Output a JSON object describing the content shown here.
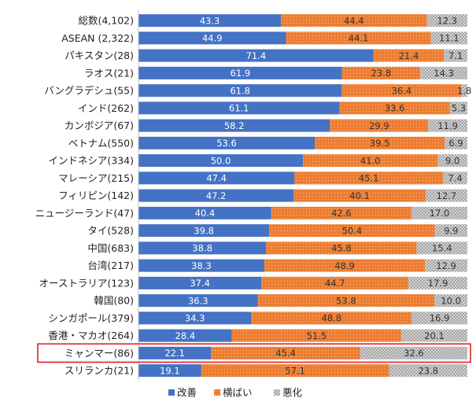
{
  "chart_data": {
    "type": "bar",
    "orientation": "horizontal",
    "stacked": "percent",
    "title": "",
    "xlabel": "",
    "ylabel": "",
    "xlim": [
      0,
      100
    ],
    "categories": [
      "総数(4,102)",
      "ASEAN (2,322)",
      "パキスタン(28)",
      "ラオス(21)",
      "バングラデシュ(55)",
      "インド(262)",
      "カンボジア(67)",
      "ベトナム(550)",
      "インドネシア(334)",
      "マレーシア(215)",
      "フィリピン(142)",
      "ニュージーランド(47)",
      "タイ(528)",
      "中国(683)",
      "台湾(217)",
      "オーストラリア(123)",
      "韓国(80)",
      "シンガポール(379)",
      "香港・マカオ(264)",
      "ミャンマー(86)",
      "スリランカ(21)"
    ],
    "series": [
      {
        "name": "改善",
        "color": "#4472c4",
        "label_color": "#ffffff",
        "pattern": "solid",
        "values": [
          43.3,
          44.9,
          71.4,
          61.9,
          61.8,
          61.1,
          58.2,
          53.6,
          50.0,
          47.4,
          47.2,
          40.4,
          39.8,
          38.8,
          38.3,
          37.4,
          36.3,
          34.3,
          28.4,
          22.1,
          19.1
        ],
        "labels": [
          "43.3",
          "44.9",
          "71.4",
          "61.9",
          "61.8",
          "61.1",
          "58.2",
          "53.6",
          "50.0",
          "47.4",
          "47.2",
          "40.4",
          "39.8",
          "38.8",
          "38.3",
          "37.4",
          "36.3",
          "34.3",
          "28.4",
          "22.1",
          "19.1"
        ]
      },
      {
        "name": "横ばい",
        "color": "#ed7d31",
        "label_color": "#333333",
        "pattern": "dots",
        "values": [
          44.4,
          44.1,
          21.4,
          23.8,
          36.4,
          33.6,
          29.9,
          39.5,
          41.0,
          45.1,
          40.1,
          42.6,
          50.4,
          45.8,
          48.9,
          44.7,
          53.8,
          48.8,
          51.5,
          45.4,
          57.1
        ],
        "labels": [
          "44.4",
          "44.1",
          "21.4",
          "23.8",
          "36.4",
          "33.6",
          "29.9",
          "39.5",
          "41.0",
          "45.1",
          "40.1",
          "42.6",
          "50.4",
          "45.8",
          "48.9",
          "44.7",
          "53.8",
          "48.8",
          "51.5",
          "45.4",
          "57.1"
        ]
      },
      {
        "name": "悪化",
        "color": "#a5a5a5",
        "label_color": "#333333",
        "pattern": "checker",
        "values": [
          12.3,
          11.1,
          7.1,
          14.3,
          1.8,
          5.3,
          11.9,
          6.9,
          9.0,
          7.4,
          12.7,
          17.0,
          9.9,
          15.4,
          12.9,
          17.9,
          10.0,
          16.9,
          20.1,
          32.6,
          23.8
        ],
        "labels": [
          "12.3",
          "11.1",
          "7.1",
          "14.3",
          "1.8",
          "5.3",
          "11.9",
          "6.9",
          "9.0",
          "7.4",
          "12.7",
          "17.0",
          "9.9",
          "15.4",
          "12.9",
          "17.9",
          "10.0",
          "16.9",
          "20.1",
          "32.6",
          "23.8"
        ]
      }
    ],
    "legend": "bottom",
    "highlighted_category": "ミャンマー(86)",
    "highlight_color": "#e02020",
    "grid": false
  }
}
